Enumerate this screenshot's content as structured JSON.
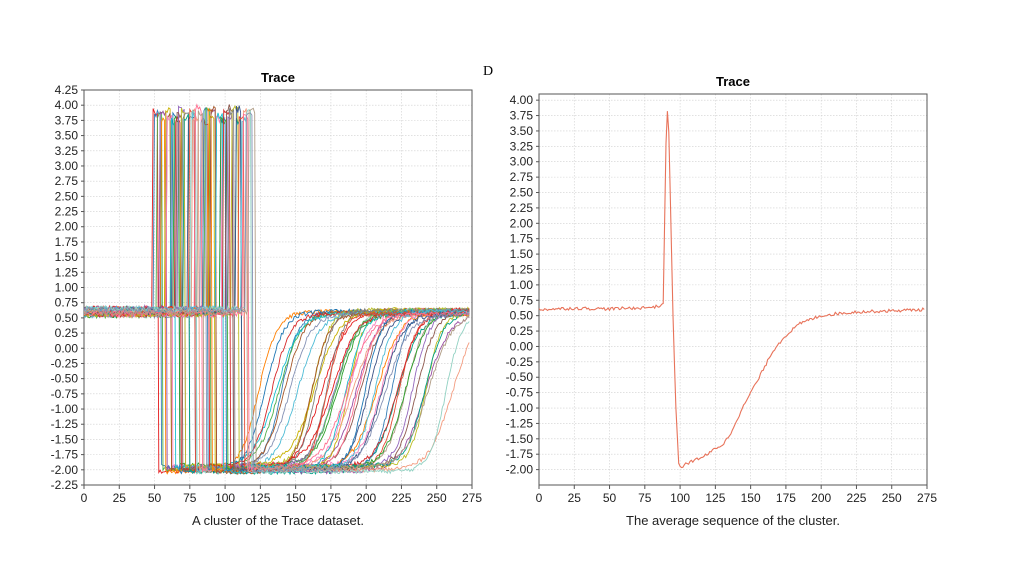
{
  "stray_mark": "D",
  "chart_data": [
    {
      "type": "line",
      "title": "Trace",
      "caption": "A cluster of the Trace dataset.",
      "xlim": [
        0,
        275
      ],
      "ylim": [
        -2.25,
        4.25
      ],
      "x_ticks": [
        "0",
        "25",
        "50",
        "75",
        "100",
        "125",
        "150",
        "175",
        "200",
        "225",
        "250",
        "275"
      ],
      "y_ticks": [
        "4.25",
        "4.00",
        "3.75",
        "3.50",
        "3.25",
        "3.00",
        "2.75",
        "2.50",
        "2.25",
        "2.00",
        "1.75",
        "1.50",
        "1.25",
        "1.00",
        "0.75",
        "0.50",
        "0.25",
        "0.00",
        "-0.25",
        "-0.50",
        "-0.75",
        "-1.00",
        "-1.25",
        "-1.50",
        "-1.75",
        "-2.00",
        "-2.25"
      ],
      "grid": true,
      "legend": "none",
      "series_count": 50,
      "x_range": [
        0,
        273
      ],
      "baseline_level": 0.6,
      "peak_level": 3.85,
      "trough_level": -1.98,
      "final_level": 0.6,
      "spike_onset_range": [
        48,
        117
      ],
      "colors": [
        "#e41a1c",
        "#377eb8",
        "#4daf4a",
        "#984ea3",
        "#ff7f00",
        "#c9b200",
        "#a65628",
        "#f781bf",
        "#17becf",
        "#1f77b4",
        "#2ca02c",
        "#d62728",
        "#9467bd",
        "#8c564b",
        "#bcbd22",
        "#7f7f7f",
        "#00a087",
        "#3c5488",
        "#e64b35",
        "#4dbbd5",
        "#f39b7f",
        "#91d1c2",
        "#ff6f91",
        "#8491b4",
        "#b09c85"
      ]
    },
    {
      "type": "line",
      "title": "Trace",
      "caption": "The average sequence of the cluster.",
      "xlim": [
        0,
        275
      ],
      "ylim": [
        -2.25,
        4.1
      ],
      "x_ticks": [
        "0",
        "25",
        "50",
        "75",
        "100",
        "125",
        "150",
        "175",
        "200",
        "225",
        "250",
        "275"
      ],
      "y_ticks": [
        "4.00",
        "3.75",
        "3.50",
        "3.25",
        "3.00",
        "2.75",
        "2.50",
        "2.25",
        "2.00",
        "1.75",
        "1.50",
        "1.25",
        "1.00",
        "0.75",
        "0.50",
        "0.25",
        "0.00",
        "-0.25",
        "-0.50",
        "-0.75",
        "-1.00",
        "-1.25",
        "-1.50",
        "-1.75",
        "-2.00"
      ],
      "grid": true,
      "legend": "none",
      "series_color": "#e8735a",
      "points": [
        [
          0,
          0.6
        ],
        [
          25,
          0.62
        ],
        [
          50,
          0.61
        ],
        [
          75,
          0.63
        ],
        [
          85,
          0.65
        ],
        [
          88,
          0.7
        ],
        [
          90,
          3.3
        ],
        [
          91,
          3.82
        ],
        [
          92,
          3.5
        ],
        [
          95,
          0.5
        ],
        [
          97,
          -1.0
        ],
        [
          99,
          -1.9
        ],
        [
          100,
          -1.97
        ],
        [
          105,
          -1.9
        ],
        [
          110,
          -1.85
        ],
        [
          115,
          -1.8
        ],
        [
          120,
          -1.75
        ],
        [
          125,
          -1.65
        ],
        [
          130,
          -1.6
        ],
        [
          135,
          -1.45
        ],
        [
          140,
          -1.2
        ],
        [
          145,
          -0.97
        ],
        [
          150,
          -0.75
        ],
        [
          155,
          -0.55
        ],
        [
          160,
          -0.33
        ],
        [
          165,
          -0.1
        ],
        [
          170,
          0.05
        ],
        [
          175,
          0.18
        ],
        [
          180,
          0.28
        ],
        [
          185,
          0.37
        ],
        [
          190,
          0.42
        ],
        [
          200,
          0.5
        ],
        [
          210,
          0.53
        ],
        [
          225,
          0.56
        ],
        [
          250,
          0.58
        ],
        [
          273,
          0.6
        ]
      ]
    }
  ]
}
